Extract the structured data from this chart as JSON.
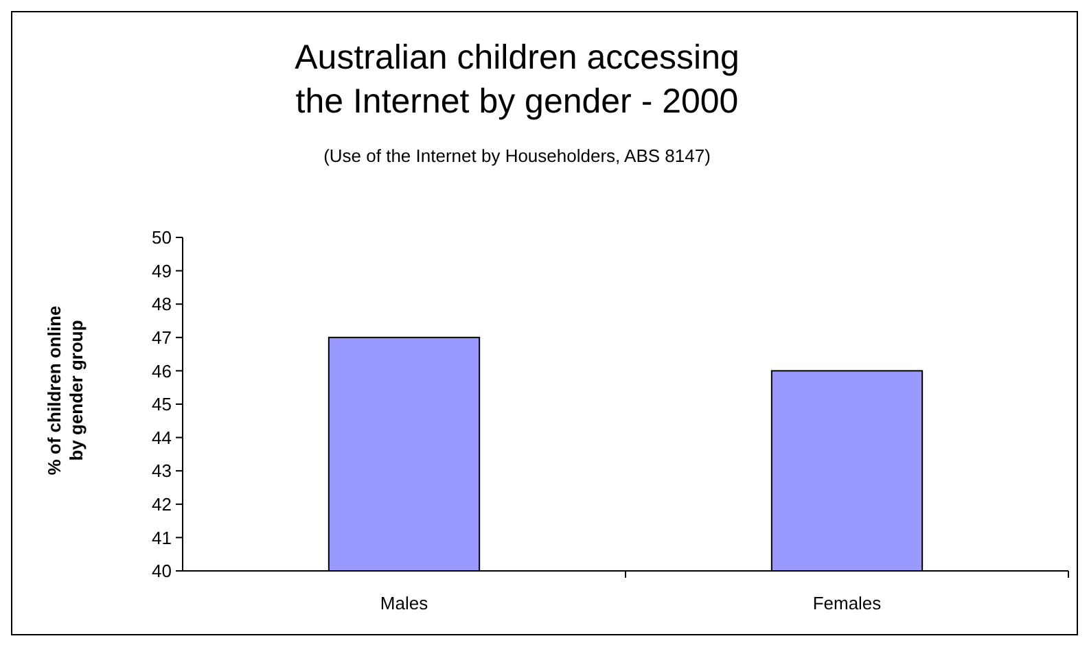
{
  "chart_data": {
    "type": "bar",
    "title": "Australian children accessing the Internet by gender - 2000",
    "subtitle": "(Use of the Internet by Householders, ABS 8147)",
    "ylabel": "% of children online by gender group",
    "categories": [
      "Males",
      "Females"
    ],
    "values": [
      47,
      46
    ],
    "color": "#9999ff",
    "ylim": [
      40,
      50
    ],
    "yticks": [
      40,
      41,
      42,
      43,
      44,
      45,
      46,
      47,
      48,
      49,
      50
    ],
    "grid": false
  }
}
